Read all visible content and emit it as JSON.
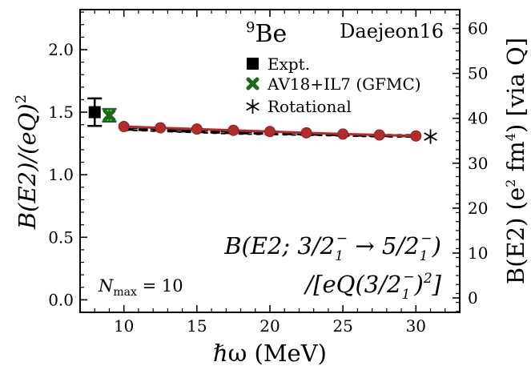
{
  "chart_data": {
    "type": "line",
    "x": [
      10,
      12.5,
      15,
      17.5,
      20,
      22.5,
      25,
      27.5,
      30
    ],
    "xlim": [
      7,
      33
    ],
    "ylim": [
      -0.1,
      2.32
    ],
    "xticks": [
      10,
      15,
      20,
      25,
      30
    ],
    "yticks": [
      0.0,
      0.5,
      1.0,
      1.5,
      2.0
    ],
    "xtick_labels": [
      "10",
      "15",
      "20",
      "25",
      "30"
    ],
    "ytick_labels": [
      "0.0",
      "0.5",
      "1.0",
      "1.5",
      "2.0"
    ],
    "right_axis": {
      "ticks": [
        0,
        10,
        20,
        30,
        40,
        50,
        60
      ],
      "tick_labels": [
        "0",
        "10",
        "20",
        "30",
        "40",
        "50",
        "60"
      ],
      "ylim": [
        -3.2,
        64.2
      ],
      "label_parts": [
        "B(E2) (e",
        "2",
        " fm",
        "4",
        ")  [via Q]"
      ]
    },
    "xlabel": "ℏω (MeV)",
    "ylabel_parts": [
      "B(E2)/(eQ)",
      "2"
    ],
    "series": [
      {
        "marker": "dashed-black-curves",
        "color": "#000000",
        "values": [
          1.365,
          1.355,
          1.345,
          1.335,
          1.33,
          1.325,
          1.318,
          1.312,
          1.31
        ]
      },
      {
        "marker": "circle",
        "color": "#b22c2c",
        "values": [
          1.385,
          1.375,
          1.365,
          1.355,
          1.345,
          1.335,
          1.325,
          1.318,
          1.31
        ]
      }
    ],
    "expt": {
      "x": 8.0,
      "y": 1.5,
      "err": 0.11,
      "color": "#000000"
    },
    "gfmc": {
      "x": 9.0,
      "y": 1.475,
      "err": 0.05,
      "color": "#1b6b1b"
    },
    "rotational": {
      "x": 31.0,
      "y": 1.305,
      "color": "#000000"
    },
    "legend": [
      {
        "label": "Expt.",
        "marker": "square",
        "color": "#000000"
      },
      {
        "label": "AV18+IL7 (GFMC)",
        "marker": "x-bold",
        "color": "#1b6b1b"
      },
      {
        "label": "Rotational",
        "marker": "asterisk",
        "color": "#000000"
      }
    ],
    "nucleus": {
      "mass": "9",
      "symbol": "Be"
    },
    "interaction": "Daejeon16",
    "nmax": {
      "n": "N",
      "sub": "max",
      "rest": " = 10"
    },
    "transition_line1_parts": [
      "B(E2; 3/2",
      "1",
      "−",
      " → 5/2",
      "1",
      "−",
      ")"
    ],
    "transition_line2_parts": [
      "/[eQ(3/2",
      "1",
      "−",
      ")",
      "2",
      "]"
    ]
  }
}
